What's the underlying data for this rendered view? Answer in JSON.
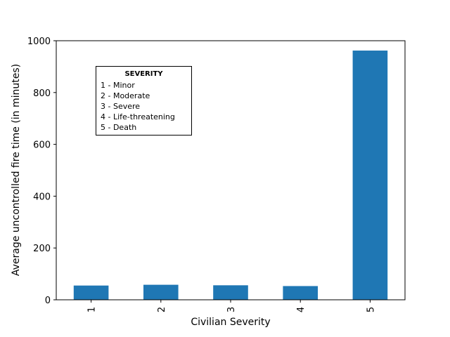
{
  "chart_data": {
    "type": "bar",
    "categories": [
      "1",
      "2",
      "3",
      "4",
      "5"
    ],
    "values": [
      55,
      58,
      56,
      53,
      962
    ],
    "xlabel": "Civilian Severity",
    "ylabel": "Average uncontrolled fire time (in minutes)",
    "ylim": [
      0,
      1000
    ],
    "yticks": [
      0,
      200,
      400,
      600,
      800,
      1000
    ],
    "bar_color": "#1f77b4",
    "grid": false,
    "legend": {
      "placement": "upper-left",
      "title": "SEVERITY",
      "entries": [
        "1 - Minor",
        "2 - Moderate",
        "3 - Severe",
        "4 - Life-threatening",
        "5 - Death"
      ]
    }
  }
}
